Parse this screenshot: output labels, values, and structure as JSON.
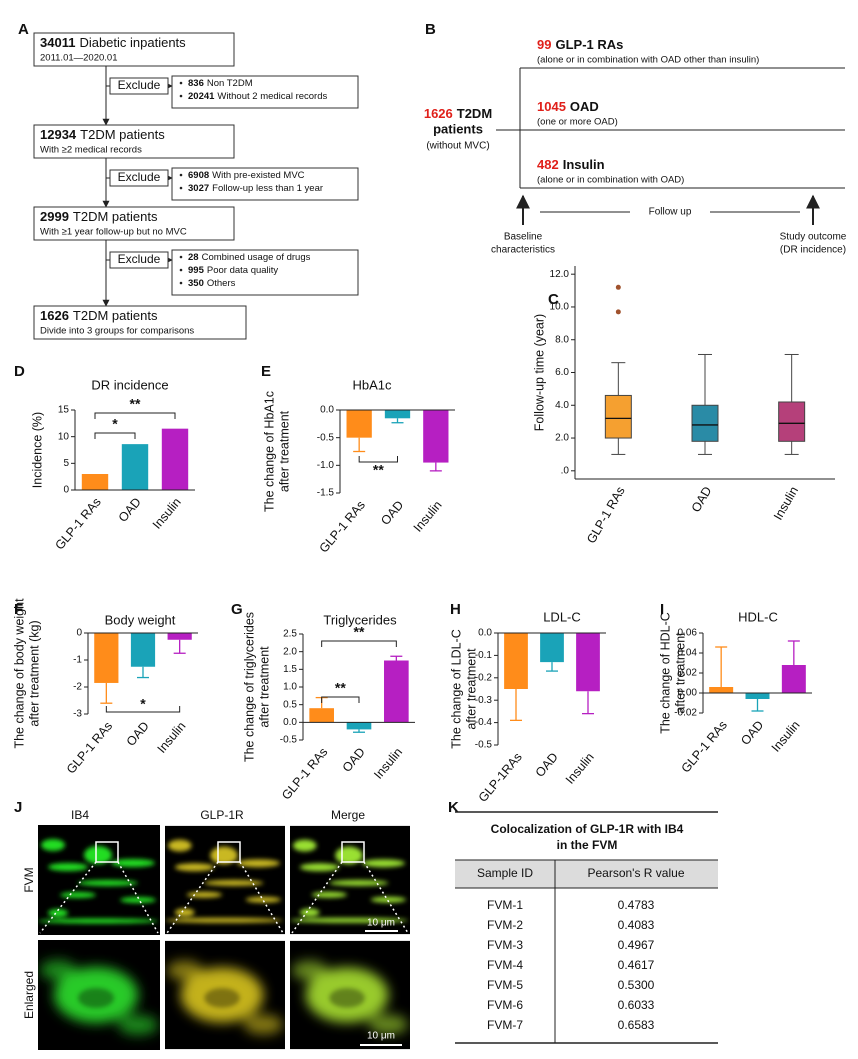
{
  "panel_labels": [
    "A",
    "B",
    "C",
    "D",
    "E",
    "F",
    "G",
    "H",
    "I",
    "J",
    "K"
  ],
  "flowchart": {
    "boxes": [
      {
        "number": "34011",
        "text": "Diabetic inpatients",
        "detail": "2011.01—2020.01"
      },
      {
        "number": "12934",
        "text": "T2DM patients",
        "detail": "With ≥2 medical records"
      },
      {
        "number": "2999",
        "text": "T2DM patients",
        "detail": "With ≥1 year follow-up but no MVC"
      },
      {
        "number": "1626",
        "text": "T2DM patients",
        "detail": "Divide into 3 groups for comparisons"
      }
    ],
    "exclusions": [
      {
        "label": "Exclude",
        "items": [
          {
            "number": "836",
            "text": "Non T2DM"
          },
          {
            "number": "20241",
            "text": "Without 2 medical records"
          }
        ]
      },
      {
        "label": "Exclude",
        "items": [
          {
            "number": "6908",
            "text": "With pre-existed MVC"
          },
          {
            "number": "3027",
            "text": "Follow-up less than 1 year"
          }
        ]
      },
      {
        "label": "Exclude",
        "items": [
          {
            "number": "28",
            "text": "Combined usage of drugs"
          },
          {
            "number": "995",
            "text": "Poor data quality"
          },
          {
            "number": "350",
            "text": "Others"
          }
        ]
      }
    ]
  },
  "study_design": {
    "cohort": {
      "number": "1626",
      "text": [
        "T2DM",
        "patients"
      ],
      "note": "(without MVC)"
    },
    "arms": [
      {
        "number": "99",
        "name": "GLP-1 RAs",
        "note": "(alone or in combination with OAD other than insulin)"
      },
      {
        "number": "1045",
        "name": "OAD",
        "note": "(one or more OAD)"
      },
      {
        "number": "482",
        "name": "Insulin",
        "note": "(alone or in combination with OAD)"
      }
    ],
    "start": [
      "Baseline",
      "characteristics"
    ],
    "follow_up": "Follow up",
    "end": [
      "Study outcome",
      "(DR incidence)"
    ]
  },
  "chart_data": [
    {
      "type": "box",
      "ylabel": [
        "Follow-up time (year)"
      ],
      "categories": [
        "GLP-1 RAs",
        "OAD",
        "Insulin"
      ],
      "colors": [
        "#f5a030",
        "#2a8ba6",
        "#b5407a"
      ],
      "boxes": [
        {
          "min": 1.0,
          "q1": 2.0,
          "median": 3.2,
          "q3": 4.6,
          "max": 6.6,
          "outliers": [
            9.7,
            11.2
          ]
        },
        {
          "min": 1.0,
          "q1": 1.8,
          "median": 2.8,
          "q3": 4.0,
          "max": 7.1,
          "outliers": []
        },
        {
          "min": 1.0,
          "q1": 1.8,
          "median": 2.9,
          "q3": 4.2,
          "max": 7.1,
          "outliers": []
        }
      ],
      "ylim": [
        -0.5,
        12.5
      ],
      "yticks": [
        {
          "value": 0,
          "label": ".0"
        },
        {
          "value": 2,
          "label": "2.0"
        },
        {
          "value": 4,
          "label": "4.0"
        },
        {
          "value": 6,
          "label": "6.0"
        },
        {
          "value": 8,
          "label": "8.0"
        },
        {
          "value": 10,
          "label": "10.0"
        },
        {
          "value": 12,
          "label": "12.0"
        }
      ]
    },
    {
      "type": "bar",
      "title": "DR incidence",
      "ylabel": [
        "Incidence (%)"
      ],
      "categories": [
        "GLP-1 RAs",
        "OAD",
        "Insulin"
      ],
      "values": [
        3,
        8.6,
        11.5
      ],
      "colors": [
        "#ff8c1a",
        "#1aa3b8",
        "#b61fc2"
      ],
      "ylim": [
        0,
        15
      ],
      "yticks": [
        0,
        5,
        10,
        15
      ],
      "significance": [
        {
          "from": "GLP-1 RAs",
          "to": "OAD",
          "label": "*"
        },
        {
          "from": "GLP-1 RAs",
          "to": "Insulin",
          "label": "**"
        }
      ]
    },
    {
      "type": "bar",
      "title": "HbA1c",
      "ylabel": [
        "The change of HbA1c",
        "after treatment"
      ],
      "categories": [
        "GLP-1 RAs",
        "OAD",
        "Insulin"
      ],
      "values": [
        -0.5,
        -0.15,
        -0.95
      ],
      "errors": [
        0.25,
        0.08,
        0.15
      ],
      "colors": [
        "#ff8c1a",
        "#1aa3b8",
        "#b61fc2"
      ],
      "ylim": [
        -1.5,
        0
      ],
      "yticks": [
        -1.5,
        {
          "value": -1,
          "label": "-1.0"
        },
        -0.5,
        {
          "value": 0,
          "label": "0.0"
        }
      ],
      "significance": [
        {
          "from": "GLP-1 RAs",
          "to": "OAD",
          "label": "**"
        }
      ]
    },
    {
      "type": "bar",
      "title": "Body weight",
      "ylabel": [
        "The change of body weight",
        "after treatment (kg)"
      ],
      "categories": [
        "GLP-1 RAs",
        "OAD",
        "Insulin"
      ],
      "values": [
        -1.85,
        -1.25,
        -0.25
      ],
      "errors": [
        0.75,
        0.4,
        0.5
      ],
      "colors": [
        "#ff8c1a",
        "#1aa3b8",
        "#b61fc2"
      ],
      "ylim": [
        -3,
        0
      ],
      "yticks": [
        -3,
        -2,
        -1,
        0
      ],
      "significance": [
        {
          "from": "GLP-1 RAs",
          "to": "Insulin",
          "label": "*"
        }
      ]
    },
    {
      "type": "bar",
      "title": "Triglycerides",
      "ylabel": [
        "The change of triglycerides",
        "after treatment"
      ],
      "categories": [
        "GLP-1 RAs",
        "OAD",
        "Insulin"
      ],
      "values": [
        0.4,
        -0.2,
        1.75
      ],
      "errors": [
        0.3,
        0.08,
        0.12
      ],
      "colors": [
        "#ff8c1a",
        "#1aa3b8",
        "#b61fc2"
      ],
      "ylim": [
        -0.5,
        2.5
      ],
      "yticks": [
        -0.5,
        {
          "value": 0,
          "label": "0.0"
        },
        0.5,
        {
          "value": 1,
          "label": "1.0"
        },
        1.5,
        {
          "value": 2,
          "label": "2.0"
        },
        2.5
      ],
      "significance": [
        {
          "from": "GLP-1 RAs",
          "to": "OAD",
          "label": "**"
        },
        {
          "from": "GLP-1 RAs",
          "to": "Insulin",
          "label": "**"
        }
      ]
    },
    {
      "type": "bar",
      "title": "LDL-C",
      "ylabel": [
        "The change of LDL-C",
        "after treatment"
      ],
      "categories": [
        "GLP-1RAs",
        "OAD",
        "Insulin"
      ],
      "values": [
        -0.25,
        -0.13,
        -0.26
      ],
      "errors": [
        0.14,
        0.04,
        0.1
      ],
      "colors": [
        "#ff8c1a",
        "#1aa3b8",
        "#b61fc2"
      ],
      "ylim": [
        -0.5,
        0
      ],
      "yticks": [
        -0.5,
        -0.4,
        -0.3,
        -0.2,
        -0.1,
        {
          "value": 0,
          "label": "0.0"
        }
      ],
      "significance": []
    },
    {
      "type": "bar",
      "title": "HDL-C",
      "ylabel": [
        "The change of HDL-C",
        "after treatment"
      ],
      "categories": [
        "GLP-1 RAs",
        "OAD",
        "Insulin"
      ],
      "values": [
        0.006,
        -0.006,
        0.028
      ],
      "errors": [
        0.04,
        0.012,
        0.024
      ],
      "colors": [
        "#ff8c1a",
        "#1aa3b8",
        "#b61fc2"
      ],
      "ylim": [
        -0.02,
        0.06
      ],
      "yticks": [
        -0.02,
        {
          "value": 0,
          "label": "0.00"
        },
        0.02,
        0.04,
        0.06
      ],
      "significance": []
    }
  ],
  "images": {
    "columns": [
      "IB4",
      "GLP-1R",
      "Merge"
    ],
    "rows": [
      "FVM",
      "Enlarged"
    ],
    "scale_bars": [
      "10 μm",
      "10 μm"
    ]
  },
  "table": {
    "title": [
      "Colocalization of GLP-1R with IB4",
      "in the FVM"
    ],
    "header": [
      "Sample ID",
      "Pearson's R value"
    ],
    "rows": [
      [
        "FVM-1",
        "0.4783"
      ],
      [
        "FVM-2",
        "0.4083"
      ],
      [
        "FVM-3",
        "0.4967"
      ],
      [
        "FVM-4",
        "0.4617"
      ],
      [
        "FVM-5",
        "0.5300"
      ],
      [
        "FVM-6",
        "0.6033"
      ],
      [
        "FVM-7",
        "0.6583"
      ]
    ]
  }
}
